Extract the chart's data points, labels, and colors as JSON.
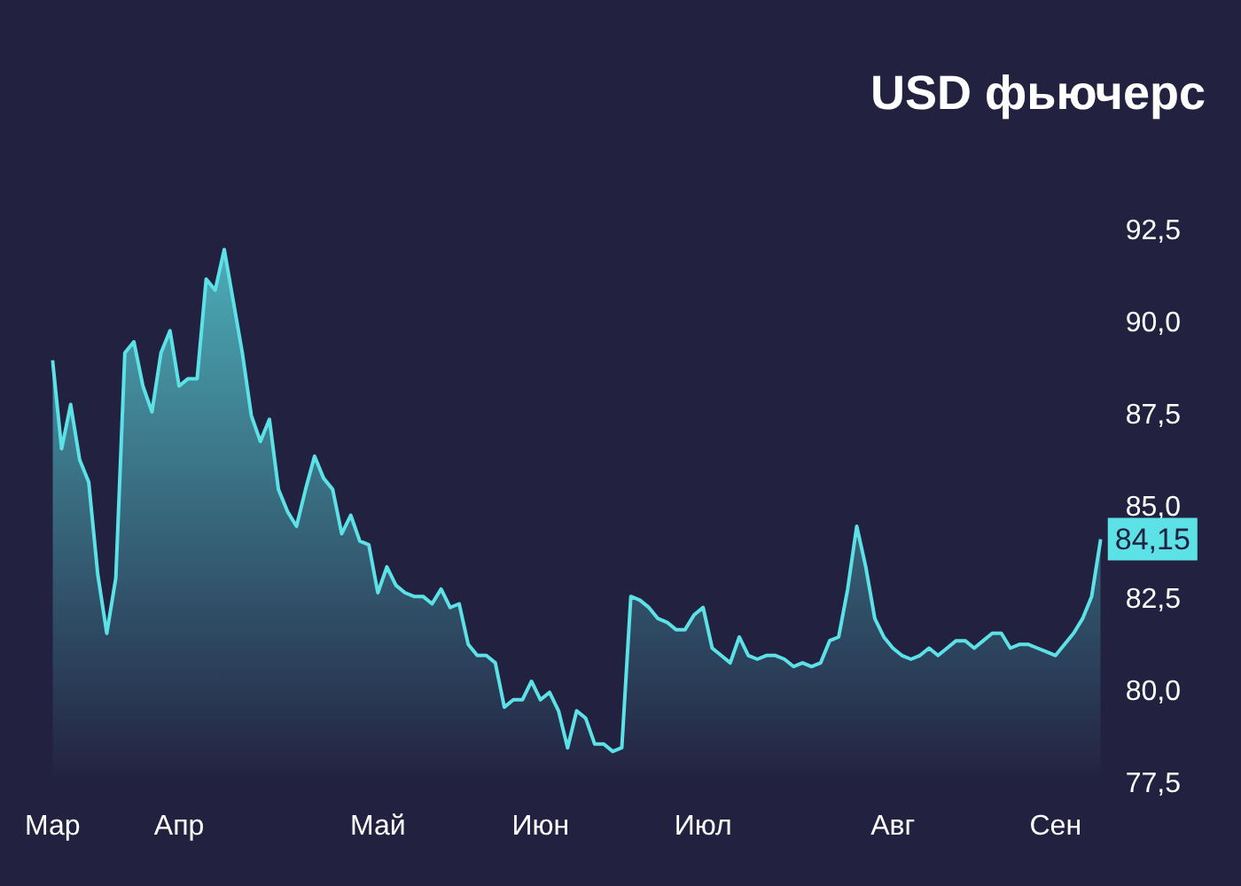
{
  "chart_data": {
    "type": "area",
    "title": "USD фьючерс",
    "categories": [
      "Мар",
      null,
      null,
      null,
      null,
      null,
      null,
      null,
      null,
      null,
      null,
      null,
      null,
      null,
      "Апр",
      null,
      null,
      null,
      null,
      null,
      null,
      null,
      null,
      null,
      null,
      null,
      null,
      null,
      null,
      null,
      null,
      null,
      null,
      null,
      null,
      null,
      "Май",
      null,
      null,
      null,
      null,
      null,
      null,
      null,
      null,
      null,
      null,
      null,
      null,
      null,
      null,
      null,
      null,
      null,
      "Июн",
      null,
      null,
      null,
      null,
      null,
      null,
      null,
      null,
      null,
      null,
      null,
      null,
      null,
      null,
      null,
      null,
      null,
      "Июл",
      null,
      null,
      null,
      null,
      null,
      null,
      null,
      null,
      null,
      null,
      null,
      null,
      null,
      null,
      null,
      null,
      null,
      null,
      null,
      null,
      "Авг",
      null,
      null,
      null,
      null,
      null,
      null,
      null,
      null,
      null,
      null,
      null,
      null,
      null,
      null,
      null,
      null,
      null,
      "Сен",
      null,
      null,
      null,
      null,
      null
    ],
    "series": [
      {
        "color": "#5ce1e6",
        "values": [
          89.0,
          86.6,
          87.8,
          86.3,
          85.7,
          83.2,
          81.6,
          83.1,
          89.2,
          89.5,
          88.3,
          87.6,
          89.2,
          89.8,
          88.3,
          88.5,
          88.5,
          91.2,
          90.9,
          92.0,
          90.6,
          89.2,
          87.5,
          86.8,
          87.4,
          85.5,
          84.9,
          84.5,
          85.5,
          86.4,
          85.8,
          85.5,
          84.3,
          84.8,
          84.1,
          84.0,
          82.7,
          83.4,
          82.9,
          82.7,
          82.6,
          82.6,
          82.4,
          82.8,
          82.3,
          82.4,
          81.3,
          81.0,
          81.0,
          80.8,
          79.6,
          79.8,
          79.8,
          80.3,
          79.8,
          80.0,
          79.5,
          78.5,
          79.5,
          79.3,
          78.6,
          78.6,
          78.4,
          78.5,
          82.6,
          82.5,
          82.3,
          82.0,
          81.9,
          81.7,
          81.7,
          82.1,
          82.3,
          81.2,
          81.0,
          80.8,
          81.5,
          81.0,
          80.9,
          81.0,
          81.0,
          80.9,
          80.7,
          80.8,
          80.7,
          80.8,
          81.4,
          81.5,
          82.8,
          84.5,
          83.4,
          82.0,
          81.5,
          81.2,
          81.0,
          80.9,
          81.0,
          81.2,
          81.0,
          81.2,
          81.4,
          81.4,
          81.2,
          81.4,
          81.6,
          81.6,
          81.2,
          81.3,
          81.3,
          81.2,
          81.1,
          81.0,
          81.3,
          81.6,
          82.0,
          82.6,
          84.15
        ],
        "value_labels": [
          null,
          null,
          null,
          null,
          null,
          null,
          null,
          null,
          null,
          null,
          null,
          null,
          null,
          null,
          null,
          null,
          null,
          null,
          null,
          null,
          null,
          null,
          null,
          null,
          null,
          null,
          null,
          null,
          null,
          null,
          null,
          null,
          null,
          null,
          null,
          null,
          null,
          null,
          null,
          null,
          null,
          null,
          null,
          null,
          null,
          null,
          null,
          null,
          null,
          null,
          null,
          null,
          null,
          null,
          null,
          null,
          null,
          null,
          null,
          null,
          null,
          null,
          null,
          null,
          null,
          null,
          null,
          null,
          null,
          null,
          null,
          null,
          null,
          null,
          null,
          null,
          null,
          null,
          null,
          null,
          null,
          null,
          null,
          null,
          null,
          null,
          null,
          null,
          null,
          null,
          null,
          null,
          null,
          null,
          null,
          null,
          null,
          null,
          null,
          null,
          null,
          null,
          null,
          null,
          null,
          null,
          null,
          null,
          null,
          null,
          null,
          null,
          null,
          null,
          null,
          null,
          "84,15"
        ]
      }
    ],
    "ylim": [
      77.5,
      92.5
    ],
    "yticks": [
      {
        "value": 77.5,
        "label": "77,5"
      },
      {
        "value": 80,
        "label": "80,0"
      },
      {
        "value": 82.5,
        "label": "82,5"
      },
      {
        "value": 85,
        "label": "85,0"
      },
      {
        "value": 87.5,
        "label": "87,5"
      },
      {
        "value": 90,
        "label": "90,0"
      },
      {
        "value": 92.5,
        "label": "92,5"
      }
    ],
    "grid": false,
    "legend": false
  }
}
